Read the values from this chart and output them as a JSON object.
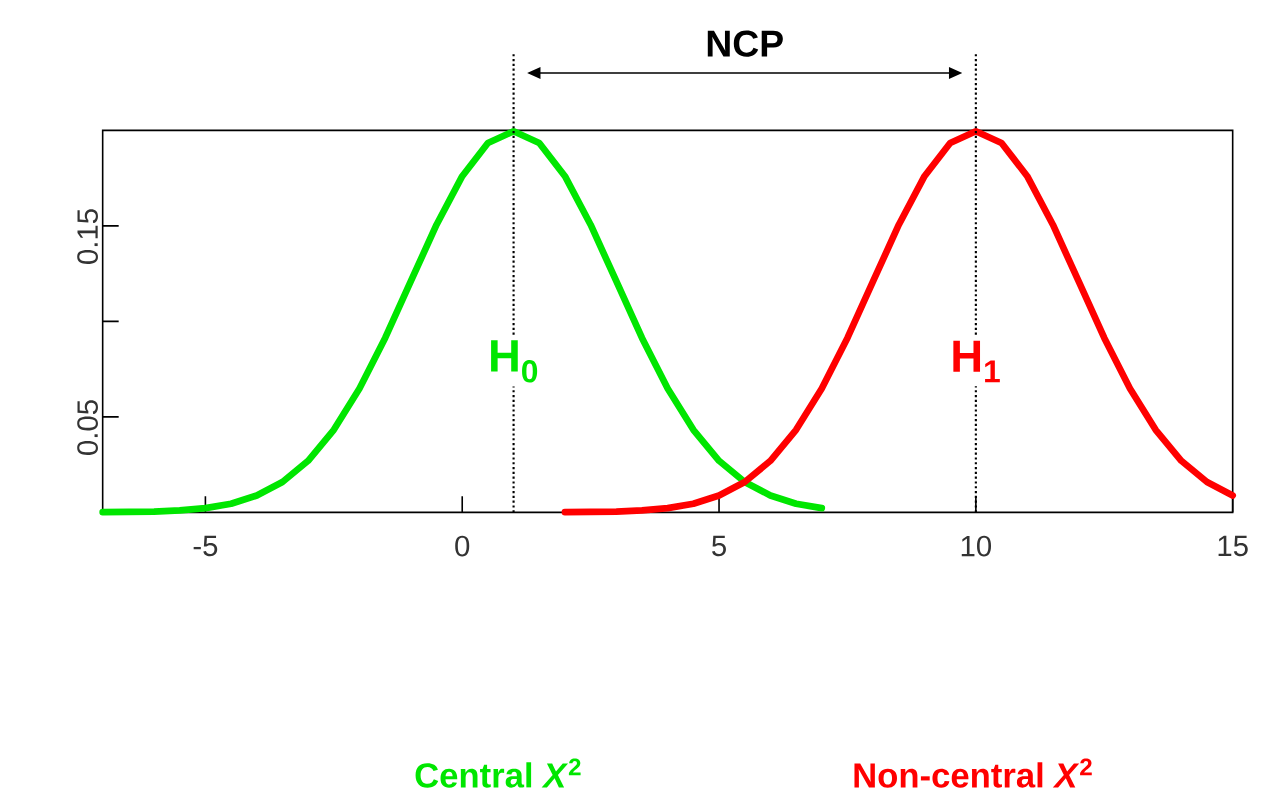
{
  "chart_data": {
    "type": "line",
    "annotations": [
      "NCP"
    ],
    "series": [
      {
        "name": "Central *X*$^{2}$",
        "color": "#00e600",
        "x": [
          -7,
          -6.5,
          -6,
          -5.5,
          -5,
          -4.5,
          -4,
          -3.5,
          -3,
          -2.5,
          -2,
          -1.5,
          -1,
          -0.5,
          0,
          0.5,
          1,
          1.5,
          2,
          2.5,
          3,
          3.5,
          4,
          4.5,
          5,
          5.5,
          6,
          6.5,
          7
        ],
        "values": [
          0.0001,
          0.0002,
          0.0004,
          0.001,
          0.0022,
          0.0045,
          0.0088,
          0.0159,
          0.027,
          0.0432,
          0.0648,
          0.0913,
          0.121,
          0.1506,
          0.176,
          0.1934,
          0.1995,
          0.1934,
          0.176,
          0.1506,
          0.121,
          0.0913,
          0.0648,
          0.0432,
          0.027,
          0.0159,
          0.0088,
          0.0045,
          0.0022
        ]
      },
      {
        "name": "Non-central *X*$^{2}$",
        "color": "#ff0000",
        "x": [
          2,
          2.5,
          3,
          3.5,
          4,
          4.5,
          5,
          5.5,
          6,
          6.5,
          7,
          7.5,
          8,
          8.5,
          9,
          9.5,
          10,
          10.5,
          11,
          11.5,
          12,
          12.5,
          13,
          13.5,
          14,
          14.5,
          15
        ],
        "values": [
          0.0001,
          0.0002,
          0.0004,
          0.001,
          0.0022,
          0.0045,
          0.0088,
          0.0159,
          0.027,
          0.0432,
          0.0648,
          0.0913,
          0.121,
          0.1506,
          0.176,
          0.1934,
          0.1995,
          0.1934,
          0.176,
          0.1506,
          0.121,
          0.0913,
          0.0648,
          0.0432,
          0.027,
          0.0159,
          0.0088
        ]
      }
    ],
    "ref_lines": [
      {
        "axis": "x",
        "value": 1,
        "label": "H$_{0}$",
        "color": "#000000",
        "line_style": "dotted"
      },
      {
        "axis": "x",
        "value": 10,
        "label": "H$_{1}$",
        "color": "#000000",
        "line_style": "dotted"
      }
    ],
    "xlim": [
      -7,
      15
    ],
    "ylim": [
      0,
      0.2
    ],
    "xticks": [
      -5,
      0,
      5,
      10,
      15
    ],
    "yticks": [
      {
        "value": 0.05,
        "label": "0.05"
      },
      {
        "value": 0.1,
        "label": null
      },
      {
        "value": 0.15,
        "label": "0.15"
      }
    ],
    "legend": "bottom",
    "grid": false,
    "marker": "none",
    "line_style": "solid"
  }
}
